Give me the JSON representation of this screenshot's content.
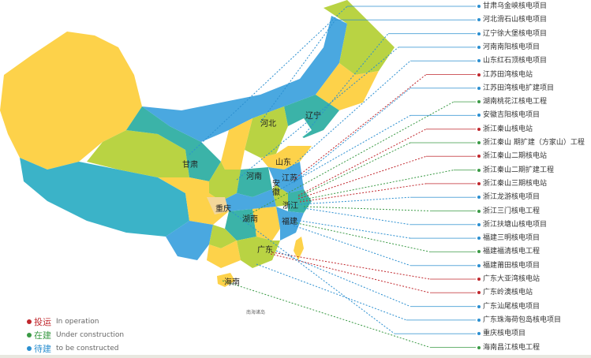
{
  "colors": {
    "operation": "#c0272d",
    "under_construction": "#3a9a45",
    "to_be_constructed": "#2b8fd0"
  },
  "legend": [
    {
      "zh": "投运",
      "en": "In operation",
      "status": "operation"
    },
    {
      "zh": "在建",
      "en": "Under construction",
      "status": "under_construction"
    },
    {
      "zh": "待建",
      "en": "to be constructed",
      "status": "to_be_constructed"
    }
  ],
  "provinces": [
    "河北",
    "辽宁",
    "甘肃",
    "山东",
    "河南",
    "江苏",
    "安徽",
    "浙江",
    "重庆",
    "湖南",
    "福建",
    "广东",
    "海南"
  ],
  "sea_label": "南海诸岛",
  "projects": [
    {
      "name": "甘肃乌金峡核电项目",
      "status": "to_be_constructed"
    },
    {
      "name": "河北滑石山核电项目",
      "status": "to_be_constructed"
    },
    {
      "name": "辽宁徐大堡核电项目",
      "status": "to_be_constructed"
    },
    {
      "name": "河南南阳核电项目",
      "status": "to_be_constructed"
    },
    {
      "name": "山东红石顶核电项目",
      "status": "to_be_constructed"
    },
    {
      "name": "江苏田湾核电站",
      "status": "operation"
    },
    {
      "name": "江苏田湾核电扩建项目",
      "status": "to_be_constructed"
    },
    {
      "name": "湖南桃花江核电工程",
      "status": "under_construction"
    },
    {
      "name": "安徽吉阳核电项目",
      "status": "to_be_constructed"
    },
    {
      "name": "浙江秦山核电站",
      "status": "operation"
    },
    {
      "name": "浙江秦山  期扩建（方家山）工程",
      "status": "under_construction"
    },
    {
      "name": "浙江秦山二期核电站",
      "status": "operation"
    },
    {
      "name": "浙江秦山二期扩建工程",
      "status": "under_construction"
    },
    {
      "name": "浙江秦山三期核电站",
      "status": "operation"
    },
    {
      "name": "浙江龙游核电项目",
      "status": "to_be_constructed"
    },
    {
      "name": "浙江三门核电工程",
      "status": "under_construction"
    },
    {
      "name": "浙江扶塘山核电项目",
      "status": "to_be_constructed"
    },
    {
      "name": "福建三明核电项目",
      "status": "to_be_constructed"
    },
    {
      "name": "福建福清核电工程",
      "status": "under_construction"
    },
    {
      "name": "福建莆田核电项目",
      "status": "to_be_constructed"
    },
    {
      "name": "广东大亚湾核电站",
      "status": "operation"
    },
    {
      "name": "广东岭澳核电站",
      "status": "operation"
    },
    {
      "name": "广东汕尾核电项目",
      "status": "to_be_constructed"
    },
    {
      "name": "广东珠海荷包岛核电项目",
      "status": "to_be_constructed"
    },
    {
      "name": "重庆核电项目",
      "status": "to_be_constructed"
    },
    {
      "name": "海南昌江核电工程",
      "status": "under_construction"
    }
  ]
}
